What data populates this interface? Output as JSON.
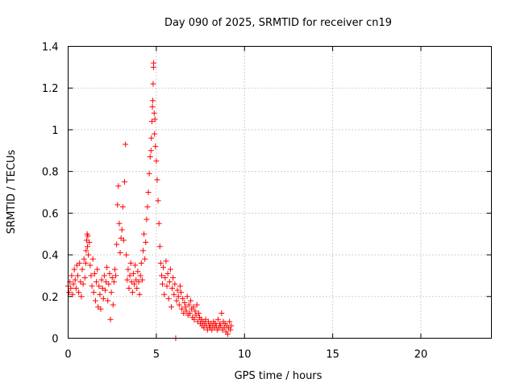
{
  "chart_data": {
    "type": "scatter",
    "title": "Day 090 of 2025, SRMTID for receiver cn19",
    "xlabel": "GPS time / hours",
    "ylabel": "SRMTID / TECUs",
    "xlim": [
      0,
      24
    ],
    "ylim": [
      0,
      1.4
    ],
    "xticks": [
      0,
      5,
      10,
      15,
      20
    ],
    "xtick_labels": [
      "0",
      "5",
      "10",
      "15",
      "20"
    ],
    "yticks": [
      0,
      0.2,
      0.4,
      0.6,
      0.8,
      1.0,
      1.2,
      1.4
    ],
    "ytick_labels": [
      "0",
      "0.2",
      "0.4",
      "0.6",
      "0.8",
      "1",
      "1.2",
      "1.4"
    ],
    "grid": true,
    "marker": "+",
    "color": "#ff0000",
    "series": [
      {
        "name": "SRMTID",
        "points": [
          [
            0.0,
            0.25
          ],
          [
            0.05,
            0.22
          ],
          [
            0.1,
            0.27
          ],
          [
            0.15,
            0.24
          ],
          [
            0.2,
            0.3
          ],
          [
            0.25,
            0.21
          ],
          [
            0.3,
            0.26
          ],
          [
            0.35,
            0.33
          ],
          [
            0.4,
            0.28
          ],
          [
            0.45,
            0.24
          ],
          [
            0.5,
            0.35
          ],
          [
            0.55,
            0.3
          ],
          [
            0.6,
            0.22
          ],
          [
            0.65,
            0.36
          ],
          [
            0.7,
            0.27
          ],
          [
            0.75,
            0.2
          ],
          [
            0.8,
            0.33
          ],
          [
            0.85,
            0.26
          ],
          [
            0.9,
            0.38
          ],
          [
            0.95,
            0.29
          ],
          [
            1.0,
            0.36
          ],
          [
            1.02,
            0.42
          ],
          [
            1.05,
            0.47
          ],
          [
            1.08,
            0.5
          ],
          [
            1.1,
            0.44
          ],
          [
            1.12,
            0.49
          ],
          [
            1.15,
            0.4
          ],
          [
            1.2,
            0.46
          ],
          [
            1.25,
            0.35
          ],
          [
            1.3,
            0.3
          ],
          [
            1.35,
            0.25
          ],
          [
            1.4,
            0.38
          ],
          [
            1.45,
            0.22
          ],
          [
            1.5,
            0.31
          ],
          [
            1.55,
            0.18
          ],
          [
            1.6,
            0.27
          ],
          [
            1.65,
            0.33
          ],
          [
            1.7,
            0.15
          ],
          [
            1.75,
            0.25
          ],
          [
            1.8,
            0.21
          ],
          [
            1.85,
            0.14
          ],
          [
            1.9,
            0.28
          ],
          [
            1.95,
            0.24
          ],
          [
            2.0,
            0.19
          ],
          [
            2.05,
            0.3
          ],
          [
            2.1,
            0.23
          ],
          [
            2.15,
            0.27
          ],
          [
            2.2,
            0.34
          ],
          [
            2.25,
            0.18
          ],
          [
            2.3,
            0.26
          ],
          [
            2.35,
            0.31
          ],
          [
            2.4,
            0.09
          ],
          [
            2.45,
            0.22
          ],
          [
            2.5,
            0.29
          ],
          [
            2.55,
            0.16
          ],
          [
            2.6,
            0.27
          ],
          [
            2.65,
            0.33
          ],
          [
            2.7,
            0.3
          ],
          [
            2.75,
            0.45
          ],
          [
            2.8,
            0.64
          ],
          [
            2.85,
            0.73
          ],
          [
            2.9,
            0.55
          ],
          [
            2.95,
            0.41
          ],
          [
            3.0,
            0.48
          ],
          [
            3.05,
            0.52
          ],
          [
            3.1,
            0.63
          ],
          [
            3.15,
            0.47
          ],
          [
            3.2,
            0.75
          ],
          [
            3.25,
            0.93
          ],
          [
            3.3,
            0.4
          ],
          [
            3.35,
            0.28
          ],
          [
            3.4,
            0.33
          ],
          [
            3.45,
            0.24
          ],
          [
            3.5,
            0.3
          ],
          [
            3.55,
            0.36
          ],
          [
            3.6,
            0.27
          ],
          [
            3.65,
            0.22
          ],
          [
            3.7,
            0.31
          ],
          [
            3.75,
            0.26
          ],
          [
            3.8,
            0.35
          ],
          [
            3.85,
            0.28
          ],
          [
            3.9,
            0.24
          ],
          [
            3.95,
            0.32
          ],
          [
            4.0,
            0.27
          ],
          [
            4.05,
            0.21
          ],
          [
            4.1,
            0.3
          ],
          [
            4.15,
            0.36
          ],
          [
            4.2,
            0.28
          ],
          [
            4.25,
            0.42
          ],
          [
            4.3,
            0.5
          ],
          [
            4.35,
            0.38
          ],
          [
            4.4,
            0.46
          ],
          [
            4.45,
            0.57
          ],
          [
            4.5,
            0.63
          ],
          [
            4.55,
            0.7
          ],
          [
            4.6,
            0.79
          ],
          [
            4.65,
            0.87
          ],
          [
            4.7,
            0.9
          ],
          [
            4.72,
            0.96
          ],
          [
            4.75,
            1.04
          ],
          [
            4.78,
            1.11
          ],
          [
            4.8,
            1.14
          ],
          [
            4.82,
            1.22
          ],
          [
            4.84,
            1.3
          ],
          [
            4.85,
            1.32
          ],
          [
            4.88,
            1.08
          ],
          [
            4.9,
            0.98
          ],
          [
            4.92,
            1.05
          ],
          [
            4.95,
            0.92
          ],
          [
            5.0,
            0.85
          ],
          [
            5.05,
            0.76
          ],
          [
            5.1,
            0.66
          ],
          [
            5.15,
            0.55
          ],
          [
            5.2,
            0.44
          ],
          [
            5.25,
            0.36
          ],
          [
            5.3,
            0.3
          ],
          [
            5.35,
            0.26
          ],
          [
            5.4,
            0.34
          ],
          [
            5.45,
            0.21
          ],
          [
            5.5,
            0.29
          ],
          [
            5.55,
            0.37
          ],
          [
            5.6,
            0.25
          ],
          [
            5.65,
            0.31
          ],
          [
            5.7,
            0.19
          ],
          [
            5.75,
            0.27
          ],
          [
            5.8,
            0.33
          ],
          [
            5.85,
            0.15
          ],
          [
            5.9,
            0.24
          ],
          [
            5.95,
            0.29
          ],
          [
            6.0,
            0.21
          ],
          [
            6.05,
            0.26
          ],
          [
            6.1,
            0.0
          ],
          [
            6.15,
            0.18
          ],
          [
            6.2,
            0.23
          ],
          [
            6.25,
            0.2
          ],
          [
            6.3,
            0.16
          ],
          [
            6.35,
            0.25
          ],
          [
            6.4,
            0.22
          ],
          [
            6.45,
            0.14
          ],
          [
            6.5,
            0.19
          ],
          [
            6.55,
            0.12
          ],
          [
            6.6,
            0.17
          ],
          [
            6.65,
            0.15
          ],
          [
            6.7,
            0.13
          ],
          [
            6.75,
            0.2
          ],
          [
            6.8,
            0.11
          ],
          [
            6.85,
            0.16
          ],
          [
            6.9,
            0.12
          ],
          [
            6.95,
            0.18
          ],
          [
            7.0,
            0.14
          ],
          [
            7.05,
            0.1
          ],
          [
            7.1,
            0.15
          ],
          [
            7.15,
            0.09
          ],
          [
            7.2,
            0.13
          ],
          [
            7.25,
            0.11
          ],
          [
            7.3,
            0.16
          ],
          [
            7.35,
            0.08
          ],
          [
            7.4,
            0.12
          ],
          [
            7.45,
            0.1
          ],
          [
            7.5,
            0.07
          ],
          [
            7.55,
            0.09
          ],
          [
            7.6,
            0.06
          ],
          [
            7.65,
            0.08
          ],
          [
            7.7,
            0.05
          ],
          [
            7.75,
            0.07
          ],
          [
            7.8,
            0.09
          ],
          [
            7.85,
            0.06
          ],
          [
            7.9,
            0.04
          ],
          [
            7.95,
            0.08
          ],
          [
            8.0,
            0.06
          ],
          [
            8.05,
            0.05
          ],
          [
            8.1,
            0.07
          ],
          [
            8.15,
            0.04
          ],
          [
            8.2,
            0.06
          ],
          [
            8.25,
            0.08
          ],
          [
            8.3,
            0.05
          ],
          [
            8.35,
            0.07
          ],
          [
            8.4,
            0.06
          ],
          [
            8.45,
            0.04
          ],
          [
            8.5,
            0.09
          ],
          [
            8.55,
            0.05
          ],
          [
            8.6,
            0.07
          ],
          [
            8.65,
            0.06
          ],
          [
            8.7,
            0.12
          ],
          [
            8.75,
            0.04
          ],
          [
            8.8,
            0.08
          ],
          [
            8.85,
            0.05
          ],
          [
            8.9,
            0.07
          ],
          [
            8.95,
            0.03
          ],
          [
            9.0,
            0.06
          ],
          [
            9.05,
            0.02
          ],
          [
            9.1,
            0.05
          ],
          [
            9.15,
            0.08
          ],
          [
            9.2,
            0.04
          ],
          [
            9.25,
            0.06
          ]
        ]
      }
    ]
  }
}
